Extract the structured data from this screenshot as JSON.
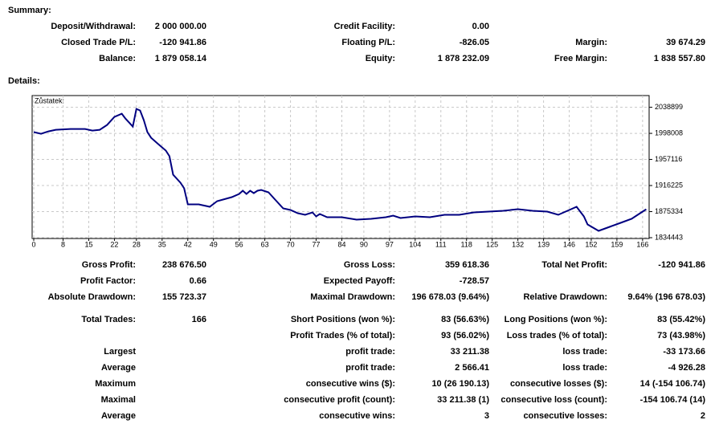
{
  "summary": {
    "title": "Summary:",
    "rows": [
      [
        "Deposit/Withdrawal:",
        "2 000 000.00",
        "Credit Facility:",
        "0.00",
        null,
        null
      ],
      [
        "Closed Trade P/L:",
        "-120 941.86",
        "Floating P/L:",
        "-826.05",
        "Margin:",
        "39 674.29"
      ],
      [
        "Balance:",
        "1 879 058.14",
        "Equity:",
        "1 878 232.09",
        "Free Margin:",
        "1 838 557.80"
      ]
    ]
  },
  "details": {
    "title": "Details:",
    "rows": [
      [
        "Gross Profit:",
        "238 676.50",
        "Gross Loss:",
        "359 618.36",
        "Total Net Profit:",
        "-120 941.86"
      ],
      [
        "Profit Factor:",
        "0.66",
        "Expected Payoff:",
        "-728.57",
        null,
        null
      ],
      [
        "Absolute Drawdown:",
        "155 723.37",
        "Maximal Drawdown:",
        "196 678.03 (9.64%)",
        "Relative Drawdown:",
        "9.64% (196 678.03)"
      ],
      [
        "Total Trades:",
        "166",
        "Short Positions (won %):",
        "83 (56.63%)",
        "Long Positions (won %):",
        "83 (55.42%)"
      ],
      [
        null,
        null,
        "Profit Trades (% of total):",
        "93 (56.02%)",
        "Loss trades (% of total):",
        "73 (43.98%)"
      ],
      [
        "Largest",
        null,
        "profit trade:",
        "33 211.38",
        "loss trade:",
        "-33 173.66"
      ],
      [
        "Average",
        null,
        "profit trade:",
        "2 566.41",
        "loss trade:",
        "-4 926.28"
      ],
      [
        "Maximum",
        null,
        "consecutive wins ($):",
        "10 (26 190.13)",
        "consecutive losses ($):",
        "14 (-154 106.74)"
      ],
      [
        "Maximal",
        null,
        "consecutive profit (count):",
        "33 211.38 (1)",
        "consecutive loss (count):",
        "-154 106.74 (14)"
      ],
      [
        "Average",
        null,
        "consecutive wins:",
        "3",
        "consecutive losses:",
        "2"
      ]
    ]
  },
  "chart_data": {
    "type": "line",
    "title": "Zůstatek:",
    "x": [
      0,
      2,
      4,
      6,
      10,
      14,
      16,
      18,
      20,
      22,
      24,
      25,
      26,
      27,
      28,
      29,
      30,
      31,
      32,
      34,
      36,
      37,
      38,
      40,
      41,
      42,
      45,
      48,
      50,
      54,
      56,
      57,
      58,
      59,
      60,
      61,
      62,
      64,
      66,
      68,
      70,
      72,
      74,
      76,
      77,
      78,
      80,
      84,
      88,
      92,
      96,
      98,
      100,
      104,
      108,
      112,
      116,
      120,
      124,
      128,
      132,
      136,
      140,
      143,
      146,
      148,
      150,
      151,
      154,
      157,
      160,
      163,
      166,
      167
    ],
    "series": [
      {
        "color": "#000080",
        "values": [
          2000000,
          1997385,
          2001159,
          2003675,
          2004933,
          2004933,
          2002417,
          2003675,
          2011223,
          2023803,
          2028835,
          2021287,
          2014997,
          2008707,
          2036383,
          2033867,
          2018771,
          1999901,
          1991095,
          1981031,
          1970967,
          1962161,
          1933227,
          1920647,
          1911841,
          1886681,
          1886681,
          1882907,
          1891713,
          1898003,
          1903035,
          1908067,
          1903035,
          1908067,
          1904293,
          1908067,
          1909325,
          1905551,
          1892971,
          1880391,
          1877875,
          1872843,
          1870327,
          1874101,
          1867811,
          1871585,
          1866553,
          1866553,
          1862779,
          1864037,
          1866553,
          1869069,
          1865295,
          1867811,
          1866553,
          1870327,
          1870327,
          1874101,
          1875359,
          1876617,
          1879133,
          1876617,
          1875359,
          1870327,
          1877875,
          1882907,
          1867811,
          1855231,
          1845167,
          1851457,
          1857747,
          1864037,
          1875359,
          1879058
        ]
      }
    ],
    "xlim": [
      0,
      168
    ],
    "ylim": [
      1834443,
      2056000
    ],
    "xticks": [
      0,
      8,
      15,
      22,
      28,
      35,
      42,
      49,
      56,
      63,
      70,
      77,
      84,
      90,
      97,
      104,
      111,
      118,
      125,
      132,
      139,
      146,
      152,
      159,
      166
    ],
    "yticks": [
      2038899,
      1998008,
      1957116,
      1916225,
      1875334,
      1834443
    ],
    "grid": true
  }
}
